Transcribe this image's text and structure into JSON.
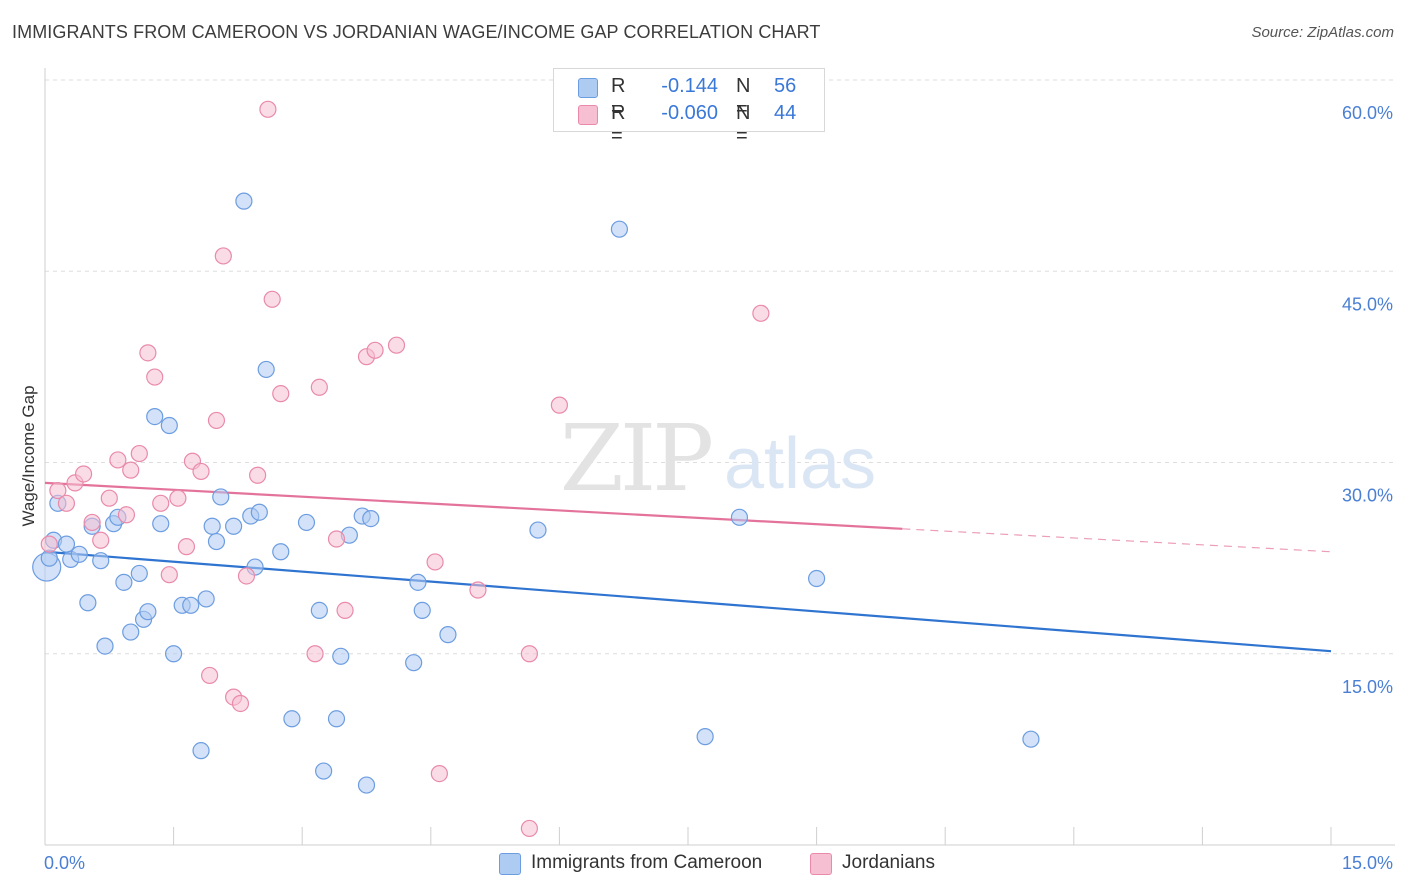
{
  "title": "IMMIGRANTS FROM CAMEROON VS JORDANIAN WAGE/INCOME GAP CORRELATION CHART",
  "source": "Source: ZipAtlas.com",
  "watermark": {
    "zip": "ZIP",
    "atlas": "atlas"
  },
  "legend": {
    "r_label": "R =",
    "n_label": "N =",
    "rows": [
      {
        "r": "-0.144",
        "n": "56"
      },
      {
        "r": "-0.060",
        "n": "44"
      }
    ]
  },
  "bottom_legend": [
    "Immigrants from Cameroon",
    "Jordanians"
  ],
  "chart_data": {
    "type": "scatter",
    "title": "IMMIGRANTS FROM CAMEROON VS JORDANIAN WAGE/INCOME GAP CORRELATION CHART",
    "xlabel": "",
    "ylabel": "Wage/Income Gap",
    "xlim": [
      0,
      15
    ],
    "ylim": [
      0,
      60
    ],
    "x_tick_labels": [
      "0.0%",
      "15.0%"
    ],
    "y_ticks": [
      15,
      30,
      45,
      60
    ],
    "y_tick_labels": [
      "15.0%",
      "30.0%",
      "45.0%",
      "60.0%"
    ],
    "grid": true,
    "colors": {
      "blue_fill": "#aecbf2",
      "blue_stroke": "#6c9de0",
      "blue_line": "#2f74d0",
      "pink_fill": "#f6bfd2",
      "pink_stroke": "#e98aab",
      "pink_line": "#e4739b"
    },
    "series": [
      {
        "name": "Immigrants from Cameroon",
        "color": "blue",
        "trend": {
          "x0": 0,
          "y0": 23.0,
          "x1": 15,
          "y1": 15.2
        },
        "points": [
          [
            0.02,
            21.8
          ],
          [
            0.1,
            23.9
          ],
          [
            0.15,
            26.8
          ],
          [
            0.25,
            23.6
          ],
          [
            0.3,
            22.4
          ],
          [
            0.4,
            22.8
          ],
          [
            0.5,
            19.0
          ],
          [
            0.55,
            25.0
          ],
          [
            0.65,
            22.3
          ],
          [
            0.7,
            15.6
          ],
          [
            0.8,
            25.2
          ],
          [
            0.85,
            25.7
          ],
          [
            0.92,
            20.6
          ],
          [
            1.0,
            16.7
          ],
          [
            1.1,
            21.3
          ],
          [
            1.15,
            17.7
          ],
          [
            1.2,
            18.3
          ],
          [
            1.28,
            33.6
          ],
          [
            1.35,
            25.2
          ],
          [
            1.45,
            32.9
          ],
          [
            1.5,
            15.0
          ],
          [
            1.6,
            18.8
          ],
          [
            1.7,
            18.8
          ],
          [
            1.82,
            7.4
          ],
          [
            1.88,
            19.3
          ],
          [
            1.95,
            25.0
          ],
          [
            2.0,
            23.8
          ],
          [
            2.05,
            27.3
          ],
          [
            2.2,
            25.0
          ],
          [
            2.32,
            50.5
          ],
          [
            2.4,
            25.8
          ],
          [
            2.45,
            21.8
          ],
          [
            2.5,
            26.1
          ],
          [
            2.58,
            37.3
          ],
          [
            2.75,
            23.0
          ],
          [
            2.88,
            9.9
          ],
          [
            3.05,
            25.3
          ],
          [
            3.2,
            18.4
          ],
          [
            3.25,
            5.8
          ],
          [
            3.4,
            9.9
          ],
          [
            3.45,
            14.8
          ],
          [
            3.55,
            24.3
          ],
          [
            3.7,
            25.8
          ],
          [
            3.75,
            4.7
          ],
          [
            3.8,
            25.6
          ],
          [
            4.3,
            14.3
          ],
          [
            4.35,
            20.6
          ],
          [
            4.4,
            18.4
          ],
          [
            4.7,
            16.5
          ],
          [
            5.75,
            24.7
          ],
          [
            6.7,
            48.3
          ],
          [
            7.7,
            8.5
          ],
          [
            8.1,
            25.7
          ],
          [
            9.0,
            20.9
          ],
          [
            11.5,
            8.3
          ],
          [
            0.05,
            22.5
          ]
        ]
      },
      {
        "name": "Jordanians",
        "color": "pink",
        "trend": {
          "x0": 0,
          "y0": 28.4,
          "x1": 10.0,
          "y1": 24.8,
          "dash_to_x": 15,
          "dash_to_y": 23.0
        },
        "points": [
          [
            0.05,
            23.6
          ],
          [
            0.15,
            27.8
          ],
          [
            0.25,
            26.8
          ],
          [
            0.35,
            28.4
          ],
          [
            0.45,
            29.1
          ],
          [
            0.55,
            25.3
          ],
          [
            0.65,
            23.9
          ],
          [
            0.75,
            27.2
          ],
          [
            0.85,
            30.2
          ],
          [
            0.95,
            25.9
          ],
          [
            1.0,
            29.4
          ],
          [
            1.1,
            30.7
          ],
          [
            1.2,
            38.6
          ],
          [
            1.28,
            36.7
          ],
          [
            1.35,
            26.8
          ],
          [
            1.45,
            21.2
          ],
          [
            1.55,
            27.2
          ],
          [
            1.65,
            23.4
          ],
          [
            1.72,
            30.1
          ],
          [
            1.82,
            29.3
          ],
          [
            1.92,
            13.3
          ],
          [
            2.0,
            33.3
          ],
          [
            2.08,
            46.2
          ],
          [
            2.2,
            11.6
          ],
          [
            2.28,
            11.1
          ],
          [
            2.35,
            21.1
          ],
          [
            2.48,
            29.0
          ],
          [
            2.6,
            57.7
          ],
          [
            2.65,
            42.8
          ],
          [
            2.75,
            35.4
          ],
          [
            3.15,
            15.0
          ],
          [
            3.2,
            35.9
          ],
          [
            3.4,
            24.0
          ],
          [
            3.5,
            18.4
          ],
          [
            3.75,
            38.3
          ],
          [
            3.85,
            38.8
          ],
          [
            4.1,
            39.2
          ],
          [
            4.55,
            22.2
          ],
          [
            4.6,
            5.6
          ],
          [
            5.05,
            20.0
          ],
          [
            5.65,
            1.3
          ],
          [
            5.65,
            15.0
          ],
          [
            6.0,
            34.5
          ],
          [
            8.35,
            41.7
          ]
        ]
      }
    ]
  }
}
